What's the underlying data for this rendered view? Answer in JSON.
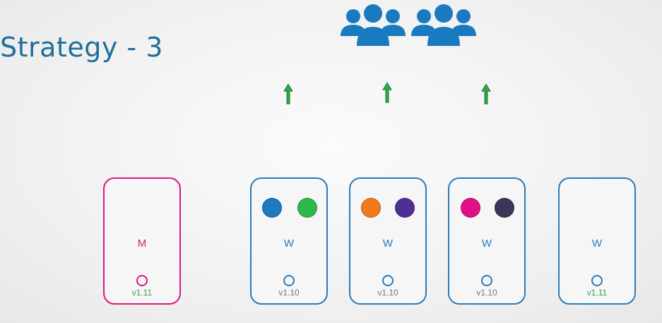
{
  "title": "Strategy - 3",
  "colors": {
    "title": "#1f6f98",
    "worker_border": "#2b7bb9",
    "master_border": "#e0157f",
    "arrow": "#2ea84a",
    "version_old": "#777777",
    "version_new": "#2ea84a"
  },
  "icons": {
    "users": "users-group-icon",
    "arrow": "up-arrow-icon"
  },
  "nodes": [
    {
      "label": "M",
      "role": "master",
      "version": "v1.11",
      "pods": []
    },
    {
      "label": "W",
      "role": "worker",
      "version": "v1.10",
      "pods": [
        "#1a7bc4",
        "#2fb84a"
      ]
    },
    {
      "label": "W",
      "role": "worker",
      "version": "v1.10",
      "pods": [
        "#f07a1c",
        "#4f2e93"
      ]
    },
    {
      "label": "W",
      "role": "worker",
      "version": "v1.10",
      "pods": [
        "#e20f86",
        "#3a3658"
      ]
    },
    {
      "label": "W",
      "role": "worker",
      "version": "v1.11",
      "pods": []
    }
  ]
}
